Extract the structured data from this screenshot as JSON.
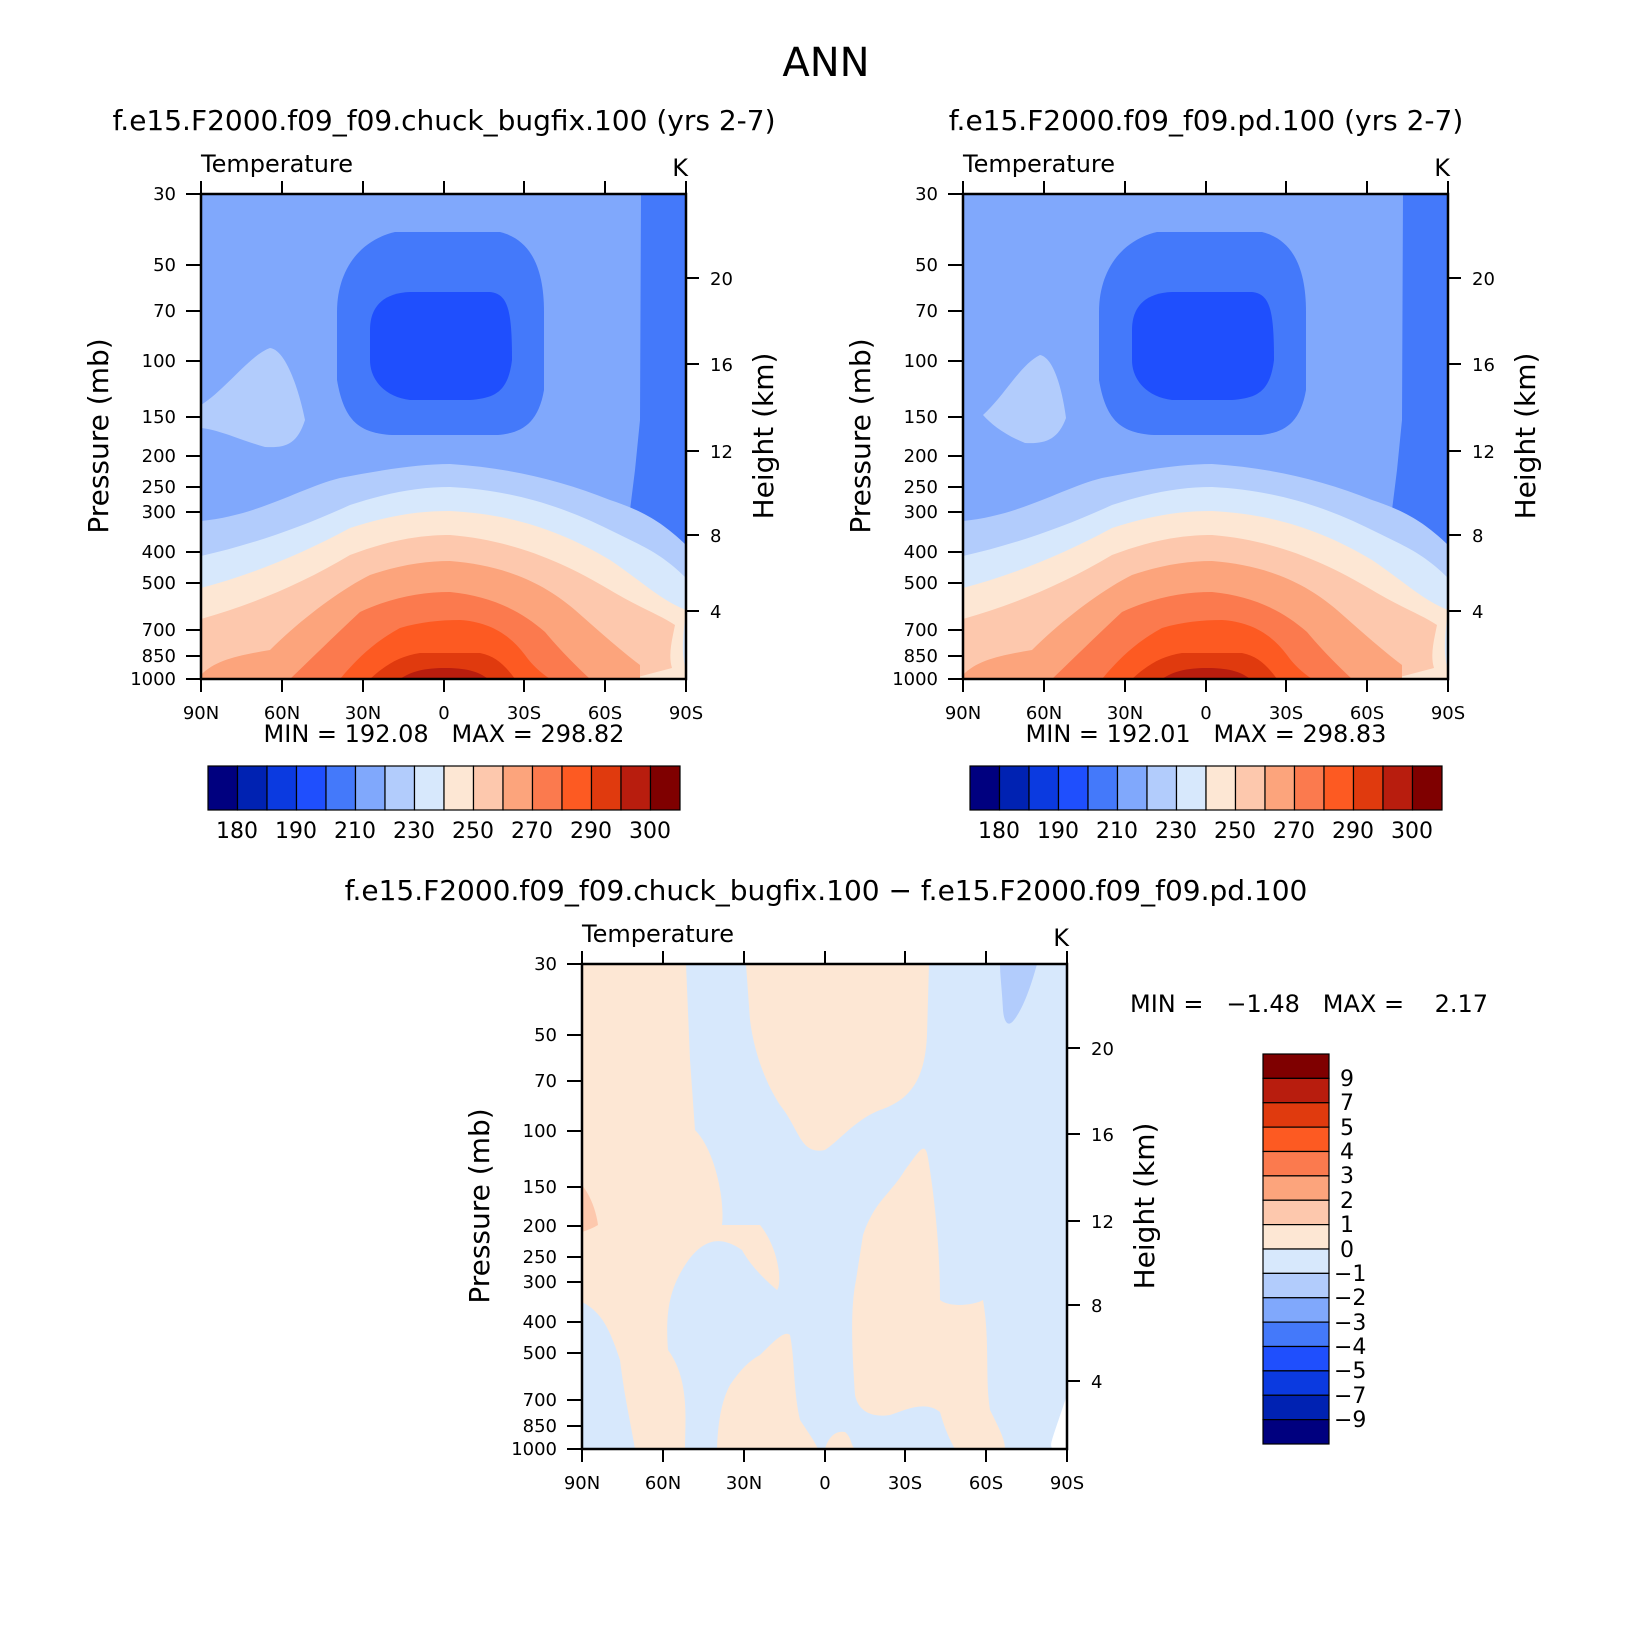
{
  "figure": {
    "title": "ANN"
  },
  "chart_data": [
    {
      "type": "heatmap",
      "title": "f.e15.F2000.f09_f09.chuck_bugfix.100 (yrs 2-7)",
      "variable_label": "Temperature",
      "units": "K",
      "ylabel": "Pressure (mb)",
      "y2label": "Height (km)",
      "x_ticks": [
        "90N",
        "60N",
        "30N",
        "0",
        "30S",
        "60S",
        "90S"
      ],
      "y_ticks": [
        "30",
        "50",
        "70",
        "100",
        "150",
        "200",
        "250",
        "300",
        "400",
        "500",
        "700",
        "850",
        "1000"
      ],
      "y2_ticks": [
        "20",
        "16",
        "12",
        "8",
        "4"
      ],
      "ylim": [
        1000,
        30
      ],
      "y_scale": "log",
      "stats": "MIN = 192.08   MAX = 298.82",
      "min": 192.08,
      "max": 298.82,
      "colorbar_labels": [
        "180",
        "190",
        "210",
        "230",
        "250",
        "270",
        "290",
        "300"
      ]
    },
    {
      "type": "heatmap",
      "title": "f.e15.F2000.f09_f09.pd.100 (yrs 2-7)",
      "variable_label": "Temperature",
      "units": "K",
      "ylabel": "Pressure (mb)",
      "y2label": "Height (km)",
      "x_ticks": [
        "90N",
        "60N",
        "30N",
        "0",
        "30S",
        "60S",
        "90S"
      ],
      "y_ticks": [
        "30",
        "50",
        "70",
        "100",
        "150",
        "200",
        "250",
        "300",
        "400",
        "500",
        "700",
        "850",
        "1000"
      ],
      "y2_ticks": [
        "20",
        "16",
        "12",
        "8",
        "4"
      ],
      "ylim": [
        1000,
        30
      ],
      "y_scale": "log",
      "stats": "MIN = 192.01   MAX = 298.83",
      "min": 192.01,
      "max": 298.83,
      "colorbar_labels": [
        "180",
        "190",
        "210",
        "230",
        "250",
        "270",
        "290",
        "300"
      ]
    },
    {
      "type": "heatmap",
      "title": "f.e15.F2000.f09_f09.chuck_bugfix.100 − f.e15.F2000.f09_f09.pd.100",
      "variable_label": "Temperature",
      "units": "K",
      "ylabel": "Pressure (mb)",
      "y2label": "Height (km)",
      "x_ticks": [
        "90N",
        "60N",
        "30N",
        "0",
        "30S",
        "60S",
        "90S"
      ],
      "y_ticks": [
        "30",
        "50",
        "70",
        "100",
        "150",
        "200",
        "250",
        "300",
        "400",
        "500",
        "700",
        "850",
        "1000"
      ],
      "y2_ticks": [
        "20",
        "16",
        "12",
        "8",
        "4"
      ],
      "ylim": [
        1000,
        30
      ],
      "y_scale": "log",
      "stats": "MIN =   −1.48   MAX =    2.17",
      "min": -1.48,
      "max": 2.17,
      "colorbar_labels": [
        "9",
        "7",
        "5",
        "4",
        "3",
        "2",
        "1",
        "0",
        "−1",
        "−2",
        "−3",
        "−4",
        "−5",
        "−7",
        "−9"
      ]
    }
  ],
  "colors": {
    "colorbar": [
      "#00007f",
      "#0022b2",
      "#0b3ae0",
      "#1f4ffd",
      "#4479fa",
      "#80a8fc",
      "#b2ccfc",
      "#d7e8fc",
      "#fde7d4",
      "#fdc8ad",
      "#fca47c",
      "#fb7a4e",
      "#fd5a22",
      "#e03a0e",
      "#b81d0e",
      "#7f0000"
    ],
    "diff_colorbar_top_to_bottom": [
      "#7f0000",
      "#b81d0e",
      "#e03a0e",
      "#fd5a22",
      "#fb7a4e",
      "#fca47c",
      "#fdc8ad",
      "#fde7d4",
      "#d7e8fc",
      "#b2ccfc",
      "#80a8fc",
      "#4479fa",
      "#1f4ffd",
      "#0b3ae0",
      "#0022b2",
      "#00007f"
    ]
  }
}
